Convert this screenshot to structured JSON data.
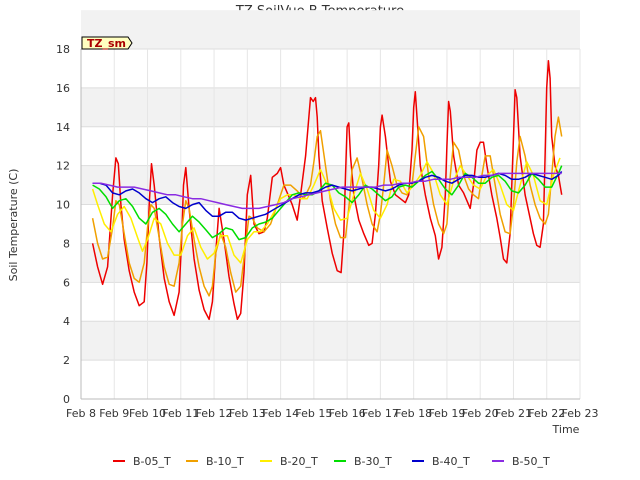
{
  "chart_data": {
    "type": "line",
    "title": "TZ SoilVue B Temperature",
    "xlabel": "Time",
    "ylabel": "Soil Temperature (C)",
    "badge": "TZ_sm",
    "xlim": [
      8,
      23
    ],
    "ylim": [
      0,
      18
    ],
    "x_ticks": [
      {
        "x": 8,
        "label": "Feb 8"
      },
      {
        "x": 9,
        "label": "Feb 9"
      },
      {
        "x": 10,
        "label": "Feb 10"
      },
      {
        "x": 11,
        "label": "Feb 11"
      },
      {
        "x": 12,
        "label": "Feb 12"
      },
      {
        "x": 13,
        "label": "Feb 13"
      },
      {
        "x": 14,
        "label": "Feb 14"
      },
      {
        "x": 15,
        "label": "Feb 15"
      },
      {
        "x": 16,
        "label": "Feb 16"
      },
      {
        "x": 17,
        "label": "Feb 17"
      },
      {
        "x": 18,
        "label": "Feb 18"
      },
      {
        "x": 19,
        "label": "Feb 19"
      },
      {
        "x": 20,
        "label": "Feb 20"
      },
      {
        "x": 21,
        "label": "Feb 21"
      },
      {
        "x": 22,
        "label": "Feb 22"
      },
      {
        "x": 23,
        "label": "Feb 23"
      }
    ],
    "y_ticks": [
      {
        "y": 0,
        "label": "0"
      },
      {
        "y": 2,
        "label": "2"
      },
      {
        "y": 4,
        "label": "4"
      },
      {
        "y": 6,
        "label": "6"
      },
      {
        "y": 8,
        "label": "8"
      },
      {
        "y": 10,
        "label": "10"
      },
      {
        "y": 12,
        "label": "12"
      },
      {
        "y": 14,
        "label": "14"
      },
      {
        "y": 16,
        "label": "16"
      },
      {
        "y": 18,
        "label": "18"
      }
    ],
    "grid": true,
    "legend_position": "bottom",
    "series": [
      {
        "name": "B-05_T",
        "color": "#ee0000",
        "x": [
          8.35,
          8.5,
          8.65,
          8.8,
          8.95,
          9.05,
          9.12,
          9.2,
          9.3,
          9.45,
          9.6,
          9.75,
          9.9,
          9.98,
          10.05,
          10.12,
          10.2,
          10.35,
          10.5,
          10.65,
          10.8,
          10.95,
          11.02,
          11.08,
          11.15,
          11.25,
          11.4,
          11.55,
          11.7,
          11.85,
          11.95,
          12.05,
          12.15,
          12.3,
          12.45,
          12.6,
          12.7,
          12.8,
          12.9,
          13.0,
          13.1,
          13.2,
          13.35,
          13.5,
          13.6,
          13.75,
          13.9,
          14.0,
          14.1,
          14.2,
          14.35,
          14.5,
          14.6,
          14.75,
          14.9,
          14.98,
          15.05,
          15.1,
          15.15,
          15.25,
          15.4,
          15.55,
          15.7,
          15.82,
          15.9,
          15.95,
          16.0,
          16.05,
          16.1,
          16.2,
          16.35,
          16.5,
          16.65,
          16.75,
          16.85,
          16.95,
          17.0,
          17.05,
          17.15,
          17.3,
          17.45,
          17.6,
          17.75,
          17.85,
          17.95,
          18.0,
          18.05,
          18.1,
          18.2,
          18.35,
          18.5,
          18.65,
          18.75,
          18.85,
          18.95,
          19.0,
          19.05,
          19.1,
          19.2,
          19.35,
          19.5,
          19.6,
          19.7,
          19.8,
          19.9,
          20.0,
          20.1,
          20.2,
          20.35,
          20.5,
          20.6,
          20.7,
          20.8,
          20.9,
          20.95,
          21.0,
          21.05,
          21.1,
          21.2,
          21.35,
          21.5,
          21.6,
          21.7,
          21.8,
          21.9,
          21.95,
          22.0,
          22.05,
          22.1,
          22.15,
          22.25,
          22.35,
          22.45
        ],
        "y": [
          8.0,
          6.8,
          5.9,
          6.8,
          10.5,
          12.4,
          12.1,
          10.0,
          8.2,
          6.6,
          5.5,
          4.8,
          5.0,
          7.0,
          10.0,
          12.1,
          11.0,
          8.3,
          6.2,
          5.0,
          4.3,
          5.5,
          8.0,
          11.0,
          11.9,
          9.8,
          7.2,
          5.6,
          4.6,
          4.1,
          5.0,
          7.5,
          9.8,
          8.2,
          6.3,
          4.9,
          4.1,
          4.4,
          6.5,
          10.5,
          11.5,
          9.0,
          8.5,
          8.6,
          9.3,
          11.4,
          11.6,
          11.9,
          11.0,
          10.6,
          10.0,
          9.2,
          10.5,
          12.5,
          15.5,
          15.3,
          15.5,
          14.5,
          12.5,
          10.2,
          8.8,
          7.5,
          6.6,
          6.5,
          8.5,
          11.5,
          14.0,
          14.2,
          12.5,
          10.5,
          9.2,
          8.5,
          7.9,
          8.0,
          9.5,
          12.0,
          14.0,
          14.6,
          13.5,
          11.2,
          10.5,
          10.3,
          10.1,
          10.5,
          12.8,
          15.0,
          15.8,
          14.5,
          12.0,
          10.5,
          9.3,
          8.4,
          7.2,
          7.8,
          10.5,
          13.0,
          15.3,
          14.8,
          12.5,
          11.0,
          10.6,
          10.2,
          9.8,
          11.0,
          12.8,
          13.2,
          13.2,
          12.0,
          10.5,
          9.3,
          8.3,
          7.2,
          7.0,
          8.5,
          11.0,
          13.5,
          15.9,
          15.5,
          12.5,
          10.5,
          9.3,
          8.5,
          7.9,
          7.8,
          9.0,
          12.5,
          16.0,
          17.4,
          16.5,
          13.5,
          12.0,
          11.5,
          10.5
        ]
      },
      {
        "name": "B-10_T",
        "color": "#f0a000",
        "x": [
          8.35,
          8.5,
          8.65,
          8.8,
          8.95,
          9.05,
          9.15,
          9.3,
          9.45,
          9.6,
          9.75,
          9.9,
          10.0,
          10.1,
          10.2,
          10.35,
          10.5,
          10.65,
          10.8,
          10.95,
          11.05,
          11.15,
          11.25,
          11.4,
          11.55,
          11.7,
          11.85,
          11.95,
          12.05,
          12.2,
          12.35,
          12.5,
          12.65,
          12.8,
          12.95,
          13.05,
          13.15,
          13.3,
          13.5,
          13.7,
          13.9,
          14.1,
          14.3,
          14.5,
          14.7,
          14.9,
          15.0,
          15.1,
          15.2,
          15.35,
          15.5,
          15.65,
          15.8,
          15.95,
          16.05,
          16.15,
          16.3,
          16.45,
          16.6,
          16.75,
          16.9,
          17.0,
          17.1,
          17.2,
          17.35,
          17.5,
          17.65,
          17.8,
          17.95,
          18.05,
          18.15,
          18.3,
          18.45,
          18.6,
          18.75,
          18.9,
          19.0,
          19.1,
          19.2,
          19.35,
          19.5,
          19.65,
          19.8,
          19.95,
          20.05,
          20.15,
          20.3,
          20.45,
          20.6,
          20.75,
          20.9,
          21.0,
          21.1,
          21.2,
          21.35,
          21.5,
          21.65,
          21.8,
          21.95,
          22.05,
          22.15,
          22.25,
          22.35,
          22.45
        ],
        "y": [
          9.3,
          8.0,
          7.2,
          7.3,
          8.8,
          10.2,
          10.0,
          8.5,
          7.0,
          6.2,
          6.0,
          7.0,
          8.8,
          10.0,
          9.8,
          8.3,
          6.8,
          5.9,
          5.8,
          7.0,
          9.0,
          10.2,
          9.8,
          8.2,
          6.8,
          5.8,
          5.3,
          5.8,
          7.5,
          8.5,
          7.8,
          6.5,
          5.5,
          5.8,
          8.0,
          9.4,
          9.3,
          8.8,
          8.6,
          9.0,
          10.0,
          11.0,
          11.0,
          10.7,
          10.3,
          11.0,
          12.2,
          13.5,
          13.8,
          12.0,
          10.2,
          9.0,
          8.3,
          8.3,
          9.8,
          11.8,
          12.4,
          11.3,
          10.0,
          9.0,
          8.6,
          9.5,
          11.0,
          12.8,
          12.0,
          11.0,
          10.6,
          10.5,
          11.0,
          12.5,
          14.0,
          13.5,
          11.5,
          10.0,
          9.0,
          8.5,
          9.0,
          11.5,
          13.2,
          12.8,
          11.5,
          10.8,
          10.5,
          10.3,
          11.5,
          12.5,
          12.5,
          11.0,
          9.5,
          8.6,
          8.5,
          10.0,
          12.2,
          13.5,
          12.5,
          11.0,
          10.0,
          9.3,
          9.0,
          9.5,
          11.5,
          13.5,
          14.5,
          13.5
        ]
      },
      {
        "name": "B-20_T",
        "color": "#ffee00",
        "x": [
          8.35,
          8.5,
          8.7,
          8.9,
          9.1,
          9.3,
          9.5,
          9.7,
          9.85,
          10.0,
          10.2,
          10.4,
          10.6,
          10.8,
          11.0,
          11.2,
          11.4,
          11.6,
          11.8,
          12.0,
          12.2,
          12.4,
          12.6,
          12.8,
          13.0,
          13.2,
          13.4,
          13.6,
          13.8,
          14.0,
          14.2,
          14.4,
          14.6,
          14.8,
          15.0,
          15.2,
          15.4,
          15.6,
          15.8,
          16.0,
          16.2,
          16.4,
          16.6,
          16.8,
          17.0,
          17.2,
          17.4,
          17.6,
          17.8,
          18.0,
          18.2,
          18.4,
          18.6,
          18.8,
          19.0,
          19.2,
          19.4,
          19.6,
          19.8,
          20.0,
          20.2,
          20.4,
          20.6,
          20.8,
          21.0,
          21.2,
          21.4,
          21.6,
          21.8,
          22.0,
          22.2,
          22.4
        ],
        "y": [
          10.8,
          10.0,
          9.0,
          8.6,
          9.5,
          9.9,
          9.3,
          8.3,
          7.6,
          8.2,
          9.3,
          9.0,
          8.0,
          7.4,
          7.4,
          8.4,
          8.8,
          7.8,
          7.2,
          7.5,
          8.4,
          8.4,
          7.4,
          7.0,
          8.2,
          8.6,
          8.6,
          9.0,
          9.6,
          10.3,
          10.5,
          10.5,
          10.3,
          10.3,
          11.0,
          11.8,
          11.0,
          9.8,
          9.2,
          9.3,
          10.5,
          11.6,
          10.8,
          9.7,
          9.3,
          10.0,
          11.3,
          11.2,
          10.6,
          11.0,
          11.5,
          12.2,
          11.6,
          10.5,
          10.0,
          11.2,
          12.0,
          11.5,
          11.0,
          10.8,
          11.5,
          11.8,
          11.0,
          10.0,
          9.7,
          11.0,
          12.2,
          11.5,
          10.2,
          10.0,
          11.5,
          12.4
        ]
      },
      {
        "name": "B-30_T",
        "color": "#00dd00",
        "x": [
          8.35,
          8.55,
          8.75,
          8.95,
          9.15,
          9.35,
          9.55,
          9.75,
          9.95,
          10.15,
          10.35,
          10.55,
          10.75,
          10.95,
          11.15,
          11.35,
          11.55,
          11.75,
          11.95,
          12.15,
          12.35,
          12.55,
          12.75,
          12.95,
          13.15,
          13.35,
          13.55,
          13.75,
          13.95,
          14.15,
          14.35,
          14.55,
          14.75,
          14.95,
          15.15,
          15.35,
          15.55,
          15.75,
          15.95,
          16.15,
          16.35,
          16.55,
          16.75,
          16.95,
          17.15,
          17.35,
          17.55,
          17.75,
          17.95,
          18.15,
          18.35,
          18.55,
          18.75,
          18.95,
          19.15,
          19.35,
          19.55,
          19.75,
          19.95,
          20.15,
          20.35,
          20.55,
          20.75,
          20.95,
          21.15,
          21.35,
          21.55,
          21.75,
          21.95,
          22.15,
          22.35,
          22.45
        ],
        "y": [
          11.0,
          10.8,
          10.4,
          9.8,
          10.2,
          10.3,
          9.9,
          9.3,
          9.0,
          9.6,
          9.8,
          9.5,
          9.0,
          8.6,
          9.0,
          9.4,
          9.1,
          8.7,
          8.3,
          8.5,
          8.8,
          8.7,
          8.2,
          8.3,
          8.8,
          9.0,
          9.1,
          9.3,
          9.7,
          10.1,
          10.5,
          10.6,
          10.5,
          10.5,
          10.7,
          11.1,
          11.0,
          10.6,
          10.4,
          10.1,
          10.5,
          11.0,
          10.8,
          10.5,
          10.2,
          10.4,
          10.9,
          11.0,
          10.9,
          11.2,
          11.5,
          11.7,
          11.3,
          10.8,
          10.5,
          11.0,
          11.6,
          11.4,
          11.1,
          11.1,
          11.4,
          11.5,
          11.2,
          10.7,
          10.6,
          11.0,
          11.6,
          11.3,
          10.9,
          10.9,
          11.6,
          12.0
        ]
      },
      {
        "name": "B-40_T",
        "color": "#0000cc",
        "x": [
          8.35,
          8.55,
          8.75,
          8.95,
          9.15,
          9.35,
          9.55,
          9.75,
          9.95,
          10.15,
          10.35,
          10.55,
          10.75,
          10.95,
          11.15,
          11.35,
          11.55,
          11.75,
          11.95,
          12.15,
          12.35,
          12.55,
          12.75,
          12.95,
          13.15,
          13.35,
          13.55,
          13.75,
          13.95,
          14.15,
          14.35,
          14.55,
          14.75,
          14.95,
          15.15,
          15.35,
          15.55,
          15.75,
          15.95,
          16.15,
          16.35,
          16.55,
          16.75,
          16.95,
          17.15,
          17.35,
          17.55,
          17.75,
          17.95,
          18.15,
          18.35,
          18.55,
          18.75,
          18.95,
          19.15,
          19.35,
          19.55,
          19.75,
          19.95,
          20.15,
          20.35,
          20.55,
          20.75,
          20.95,
          21.15,
          21.35,
          21.55,
          21.75,
          21.95,
          22.15,
          22.35,
          22.45
        ],
        "y": [
          11.1,
          11.1,
          11.0,
          10.6,
          10.5,
          10.7,
          10.8,
          10.6,
          10.3,
          10.1,
          10.3,
          10.4,
          10.1,
          9.9,
          9.8,
          10.0,
          10.1,
          9.7,
          9.4,
          9.4,
          9.6,
          9.6,
          9.3,
          9.2,
          9.3,
          9.4,
          9.5,
          9.7,
          9.9,
          10.1,
          10.3,
          10.5,
          10.6,
          10.6,
          10.7,
          10.9,
          11.0,
          10.9,
          10.8,
          10.7,
          10.8,
          10.9,
          10.9,
          10.8,
          10.7,
          10.8,
          11.0,
          11.1,
          11.1,
          11.2,
          11.4,
          11.5,
          11.4,
          11.2,
          11.1,
          11.3,
          11.5,
          11.5,
          11.4,
          11.4,
          11.5,
          11.6,
          11.5,
          11.3,
          11.3,
          11.4,
          11.6,
          11.5,
          11.4,
          11.3,
          11.5,
          11.7
        ]
      },
      {
        "name": "B-50_T",
        "color": "#8a2be2",
        "x": [
          8.35,
          8.6,
          8.85,
          9.1,
          9.35,
          9.6,
          9.85,
          10.1,
          10.35,
          10.6,
          10.85,
          11.1,
          11.35,
          11.6,
          11.85,
          12.1,
          12.35,
          12.6,
          12.85,
          13.1,
          13.35,
          13.6,
          13.85,
          14.1,
          14.35,
          14.6,
          14.85,
          15.1,
          15.35,
          15.6,
          15.85,
          16.1,
          16.35,
          16.6,
          16.85,
          17.1,
          17.35,
          17.6,
          17.85,
          18.1,
          18.35,
          18.6,
          18.85,
          19.1,
          19.35,
          19.6,
          19.85,
          20.1,
          20.35,
          20.6,
          20.85,
          21.1,
          21.35,
          21.6,
          21.85,
          22.1,
          22.35,
          22.45
        ],
        "y": [
          11.1,
          11.1,
          11.0,
          10.9,
          10.9,
          10.9,
          10.8,
          10.7,
          10.6,
          10.5,
          10.5,
          10.4,
          10.3,
          10.3,
          10.2,
          10.1,
          10.0,
          9.9,
          9.8,
          9.8,
          9.8,
          9.9,
          10.0,
          10.1,
          10.3,
          10.4,
          10.5,
          10.6,
          10.7,
          10.8,
          10.9,
          10.9,
          10.9,
          10.9,
          10.9,
          11.0,
          11.0,
          11.1,
          11.1,
          11.2,
          11.2,
          11.3,
          11.3,
          11.3,
          11.4,
          11.4,
          11.4,
          11.5,
          11.5,
          11.6,
          11.6,
          11.6,
          11.6,
          11.6,
          11.6,
          11.6,
          11.6,
          11.6
        ]
      }
    ]
  }
}
